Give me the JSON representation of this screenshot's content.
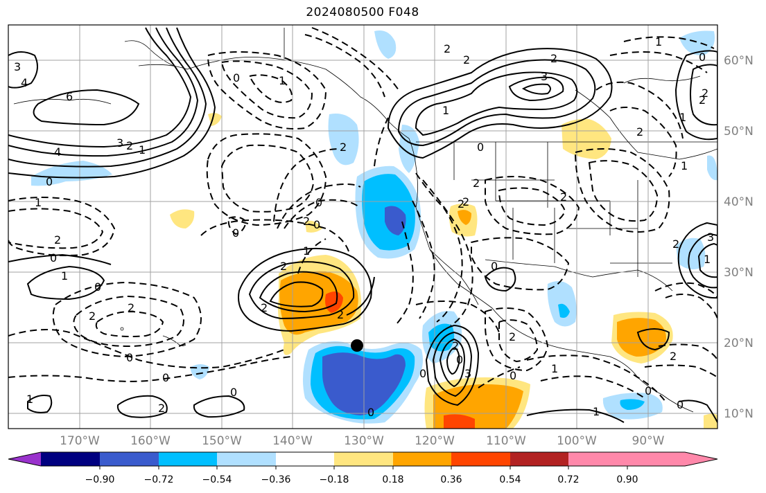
{
  "title": "2024080500 F048",
  "lon_labels": [
    "170°W",
    "160°W",
    "150°W",
    "140°W",
    "130°W",
    "120°W",
    "110°W",
    "100°W",
    "90°W"
  ],
  "lat_labels": [
    "60°N",
    "50°N",
    "40°N",
    "30°N",
    "20°N",
    "10°N"
  ],
  "colorbar": {
    "colors": [
      "#9932cc",
      "#000080",
      "#3a5bcd",
      "#00bfff",
      "#b0e0ff",
      "#ffffff",
      "#ffe680",
      "#ffa500",
      "#ff4500",
      "#b22222",
      "#ff88aa"
    ],
    "tick_labels": [
      "−0.90",
      "−0.72",
      "−0.54",
      "−0.36",
      "−0.18",
      "0.18",
      "0.36",
      "0.54",
      "0.72",
      "0.90"
    ]
  },
  "contour_labels": [
    "3",
    "4",
    "6",
    "4",
    "3",
    "2",
    "1",
    "0",
    "1",
    "2",
    "0",
    "1",
    "2",
    "0",
    "2",
    "0",
    "0",
    "1",
    "2",
    "0",
    "0",
    "1",
    "2",
    "2",
    "0",
    "1",
    "2",
    "2",
    "2",
    "0",
    "2",
    "2",
    "1",
    "0",
    "2",
    "3",
    "2",
    "1",
    "0",
    "2",
    "1",
    "2",
    "2",
    "0",
    "2",
    "1",
    "3",
    "2",
    "0",
    "2",
    "3",
    "0",
    "2",
    "1",
    "0",
    "2",
    "0",
    "0",
    "1",
    "0",
    "2",
    "1",
    "2",
    "0"
  ],
  "marker": "forecast-point"
}
